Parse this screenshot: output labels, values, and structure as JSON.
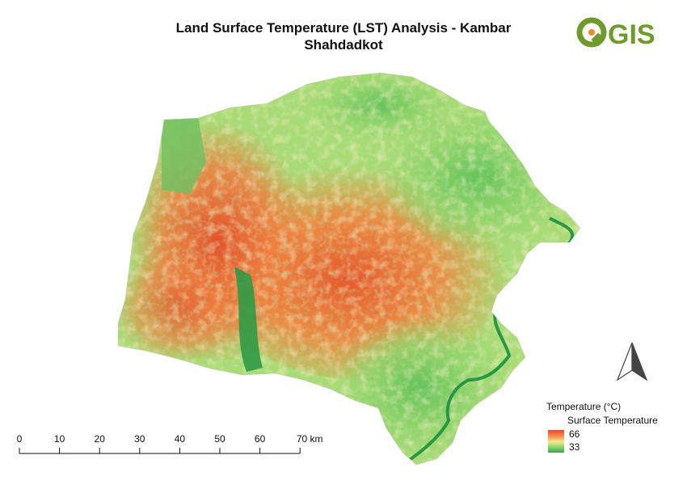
{
  "map": {
    "title_line1": "Land Surface Temperature (LST) Analysis - Kambar",
    "title_line2": "Shahdadkot"
  },
  "logo": {
    "text": "QGIS",
    "color": "#6e9b2c",
    "accent": "#ee8a27"
  },
  "legend": {
    "heading": "Temperature (°C)",
    "layer_name": "Surface Temperature",
    "max_label": "66",
    "min_label": "33",
    "ramp_colors": [
      "#e8452a",
      "#f79a55",
      "#f4e890",
      "#8ed46d",
      "#3aa34a"
    ]
  },
  "scalebar": {
    "ticks": [
      "0",
      "10",
      "20",
      "30",
      "40",
      "50",
      "60",
      "70 km"
    ]
  },
  "north_arrow": {
    "icon": "north-arrow-icon"
  }
}
